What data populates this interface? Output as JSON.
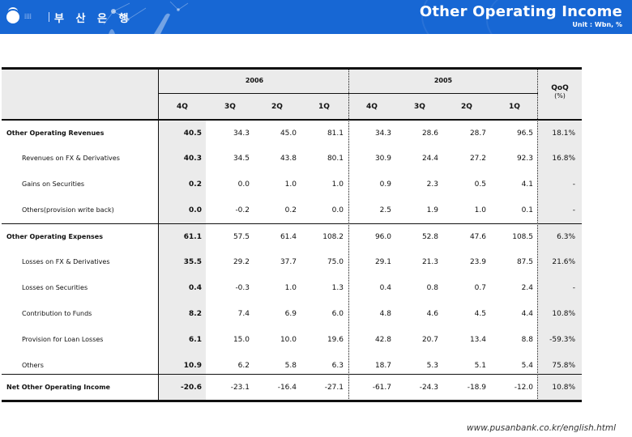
{
  "header": {
    "bank_name": "부 산 은 행",
    "title": "Other Operating Income",
    "unit": "Unit : Wbn, %"
  },
  "table": {
    "years": [
      "2006",
      "2005"
    ],
    "quarters": [
      "4Q",
      "3Q",
      "2Q",
      "1Q",
      "4Q",
      "3Q",
      "2Q",
      "1Q"
    ],
    "qoq_label": "QoQ",
    "qoq_unit": "(%)",
    "rows": [
      {
        "label": "Other Operating Revenues",
        "type": "main",
        "values": [
          "40.5",
          "34.3",
          "45.0",
          "81.1",
          "34.3",
          "28.6",
          "28.7",
          "96.5"
        ],
        "qoq": "18.1%"
      },
      {
        "label": "Revenues on FX & Derivatives",
        "type": "sub",
        "values": [
          "40.3",
          "34.5",
          "43.8",
          "80.1",
          "30.9",
          "24.4",
          "27.2",
          "92.3"
        ],
        "qoq": "16.8%"
      },
      {
        "label": "Gains on Securities",
        "type": "sub",
        "values": [
          "0.2",
          "0.0",
          "1.0",
          "1.0",
          "0.9",
          "2.3",
          "0.5",
          "4.1"
        ],
        "qoq": "-"
      },
      {
        "label": "Others(provision write back)",
        "type": "sub",
        "values": [
          "0.0",
          "-0.2",
          "0.2",
          "0.0",
          "2.5",
          "1.9",
          "1.0",
          "0.1"
        ],
        "qoq": "-"
      },
      {
        "label": "Other Operating Expenses",
        "type": "main",
        "values": [
          "61.1",
          "57.5",
          "61.4",
          "108.2",
          "96.0",
          "52.8",
          "47.6",
          "108.5"
        ],
        "qoq": "6.3%"
      },
      {
        "label": "Losses on FX & Derivatives",
        "type": "sub",
        "values": [
          "35.5",
          "29.2",
          "37.7",
          "75.0",
          "29.1",
          "21.3",
          "23.9",
          "87.5"
        ],
        "qoq": "21.6%"
      },
      {
        "label": "Losses on Securities",
        "type": "sub",
        "values": [
          "0.4",
          "-0.3",
          "1.0",
          "1.3",
          "0.4",
          "0.8",
          "0.7",
          "2.4"
        ],
        "qoq": "-"
      },
      {
        "label": "Contribution to Funds",
        "type": "sub",
        "values": [
          "8.2",
          "7.4",
          "6.9",
          "6.0",
          "4.8",
          "4.6",
          "4.5",
          "4.4"
        ],
        "qoq": "10.8%"
      },
      {
        "label": "Provision for Loan Losses",
        "type": "sub",
        "values": [
          "6.1",
          "15.0",
          "10.0",
          "19.6",
          "42.8",
          "20.7",
          "13.4",
          "8.8"
        ],
        "qoq": "-59.3%"
      },
      {
        "label": "Others",
        "type": "sub",
        "values": [
          "10.9",
          "6.2",
          "5.8",
          "6.3",
          "18.7",
          "5.3",
          "5.1",
          "5.4"
        ],
        "qoq": "75.8%"
      },
      {
        "label": "Net Other Operating Income",
        "type": "main",
        "values": [
          "-20.6",
          "-23.1",
          "-16.4",
          "-27.1",
          "-61.7",
          "-24.3",
          "-18.9",
          "-12.0"
        ],
        "qoq": "10.8%"
      }
    ]
  },
  "footer": {
    "url": "www.pusanbank.co.kr/english.html"
  },
  "colors": {
    "banner": "#1767d4",
    "header_fill": "#ebebeb",
    "rule": "#111111"
  }
}
